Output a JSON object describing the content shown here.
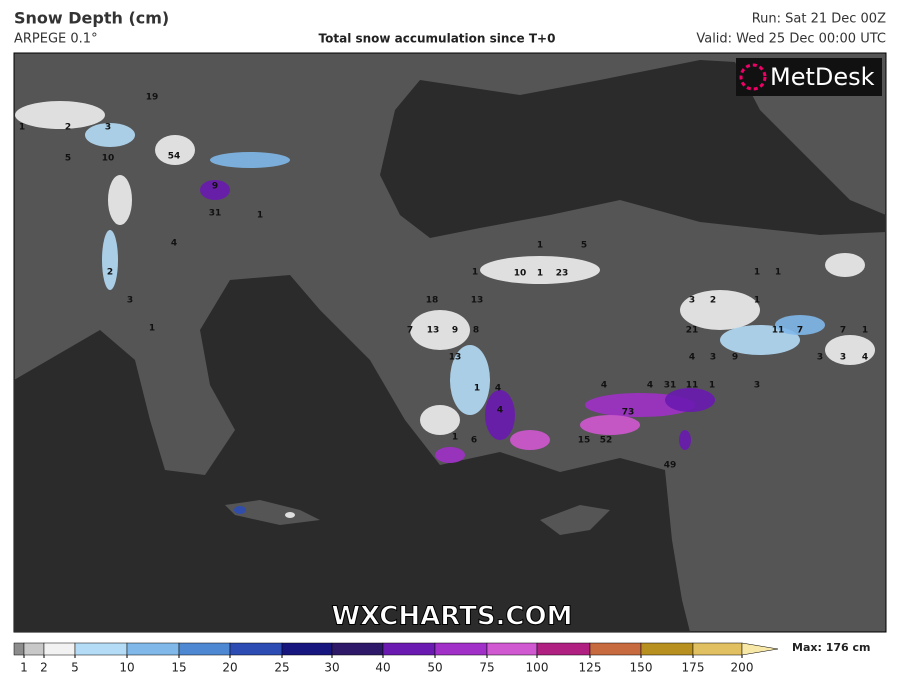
{
  "header": {
    "title": "Snow Depth (cm)",
    "model": "ARPEGE 0.1°",
    "subtitle": "Total snow accumulation since T+0",
    "run": "Run: Sat 21 Dec 00Z",
    "valid": "Valid: Wed 25 Dec 00:00 UTC"
  },
  "logo": "MetDesk",
  "watermark": "WXCHARTS.COM",
  "map": {
    "labels": [
      19,
      1,
      2,
      3,
      5,
      10,
      54,
      9,
      31,
      1,
      4,
      2,
      3,
      1,
      1,
      1,
      5,
      10,
      1,
      23,
      18,
      13,
      7,
      13,
      9,
      8,
      13,
      1,
      4,
      4,
      1,
      6,
      15,
      52,
      73,
      31,
      11,
      1,
      4,
      4,
      4,
      3,
      9,
      1,
      1,
      3,
      2,
      1,
      21,
      11,
      7,
      7,
      1,
      3,
      3,
      4,
      3,
      49
    ]
  },
  "legend": {
    "ticks": [
      1,
      2,
      5,
      10,
      15,
      20,
      25,
      30,
      40,
      50,
      75,
      100,
      125,
      150,
      175,
      200
    ],
    "colors": [
      "#8c8c8c",
      "#c8c8c8",
      "#f2f2f2",
      "#b4dcf6",
      "#80b8ea",
      "#4f88d2",
      "#2c4cb4",
      "#16167e",
      "#2e1868",
      "#6a1ab0",
      "#a030c8",
      "#d058d0",
      "#b02080",
      "#c86a40",
      "#b89020",
      "#e0c060",
      "#f8e8a8"
    ],
    "max": "Max: 176 cm"
  }
}
